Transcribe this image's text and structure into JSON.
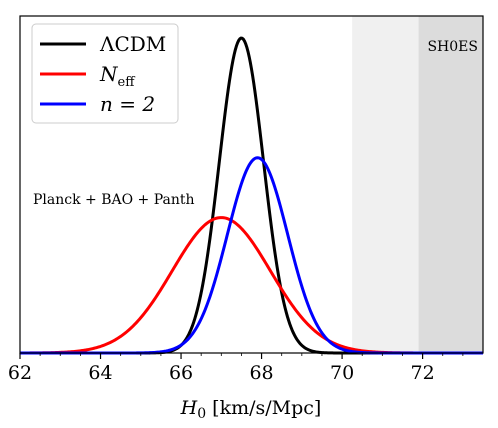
{
  "chart_data": {
    "type": "line",
    "xlabel": "H₀ [km/s/Mpc]",
    "ylabel": "",
    "xlim": [
      62,
      73.5
    ],
    "ylim": [
      0,
      1.07
    ],
    "xticks": [
      "62",
      "64",
      "66",
      "68",
      "70",
      "72"
    ],
    "xtick_values": [
      62,
      64,
      66,
      68,
      70,
      72
    ],
    "grid": false,
    "legend_position": "top-left",
    "series": [
      {
        "name": "ΛCDM",
        "color": "#000000",
        "mean": 67.5,
        "sigma": 0.55,
        "peak": 1.0
      },
      {
        "name": "N_eff",
        "color": "#ff0000",
        "mean": 67.0,
        "sigma": 1.22,
        "peak": 0.43
      },
      {
        "name": "n = 2",
        "color": "#0000ff",
        "mean": 67.9,
        "sigma": 0.75,
        "peak": 0.62
      }
    ],
    "bands": [
      {
        "range": [
          70.25,
          71.9
        ],
        "color": "#f0f0f0"
      },
      {
        "range": [
          71.9,
          73.5
        ],
        "color": "#dcdcdc"
      }
    ],
    "annotations": {
      "dataset": "Planck + BAO + Panth",
      "sh0es": "SH0ES"
    },
    "legend": {
      "lcdm": "ΛCDM",
      "neff_base": "N",
      "neff_sub": "eff",
      "n2": "n = 2"
    }
  }
}
